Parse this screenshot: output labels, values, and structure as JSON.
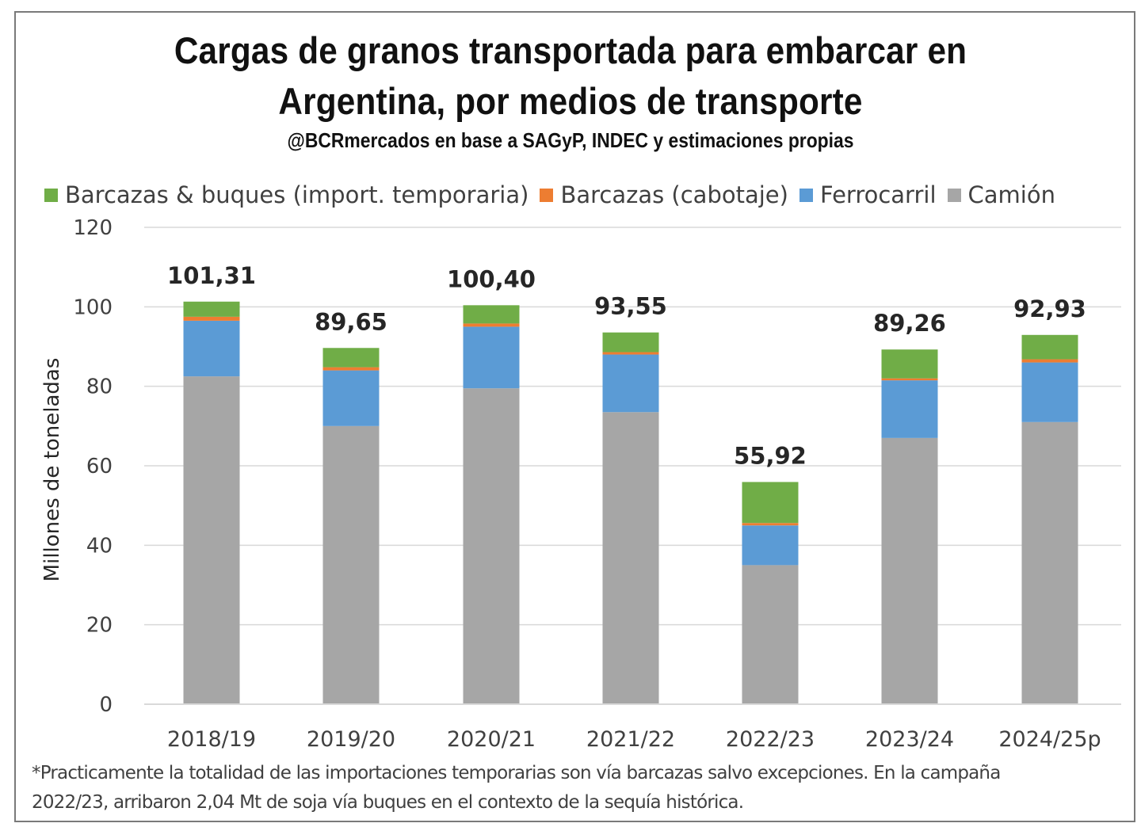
{
  "title": {
    "line1": "Cargas de granos transportada para embarcar en",
    "line2": "Argentina, por medios de transporte"
  },
  "subtitle": "@BCRmercados en base a SAGyP, INDEC y estimaciones propias",
  "footnote": {
    "line1": "*Practicamente la totalidad de las importaciones temporarias son vía barcazas salvo excepciones. En la campaña",
    "line2": "2022/23, arribaron 2,04 Mt de soja vía buques en el contexto de la sequía histórica."
  },
  "chart_data": {
    "type": "bar",
    "stacked": true,
    "ylabel": "Millones de toneladas",
    "ylim": [
      0,
      120
    ],
    "yticks": [
      0,
      20,
      40,
      60,
      80,
      100,
      120
    ],
    "grid": true,
    "legend_position": "top",
    "categories": [
      "2018/19",
      "2019/20",
      "2020/21",
      "2021/22",
      "2022/23",
      "2023/24",
      "2024/25p"
    ],
    "series": [
      {
        "name": "Camión",
        "color": "#a6a6a6",
        "values": [
          82.5,
          70.0,
          79.5,
          73.5,
          35.0,
          67.0,
          71.0
        ]
      },
      {
        "name": "Ferrocarril",
        "color": "#5b9bd5",
        "values": [
          14.0,
          14.0,
          15.5,
          14.5,
          10.0,
          14.5,
          15.0
        ]
      },
      {
        "name": "Barcazas (cabotaje)",
        "color": "#ed7d31",
        "values": [
          1.0,
          0.8,
          0.8,
          0.6,
          0.6,
          0.5,
          0.8
        ]
      },
      {
        "name": "Barcazas & buques (import. temporaria)",
        "color": "#70ad47",
        "values": [
          3.81,
          4.85,
          4.6,
          4.95,
          10.32,
          7.26,
          6.13
        ]
      }
    ],
    "totals": [
      "101,31",
      "89,65",
      "100,40",
      "93,55",
      "55,92",
      "89,26",
      "92,93"
    ]
  }
}
